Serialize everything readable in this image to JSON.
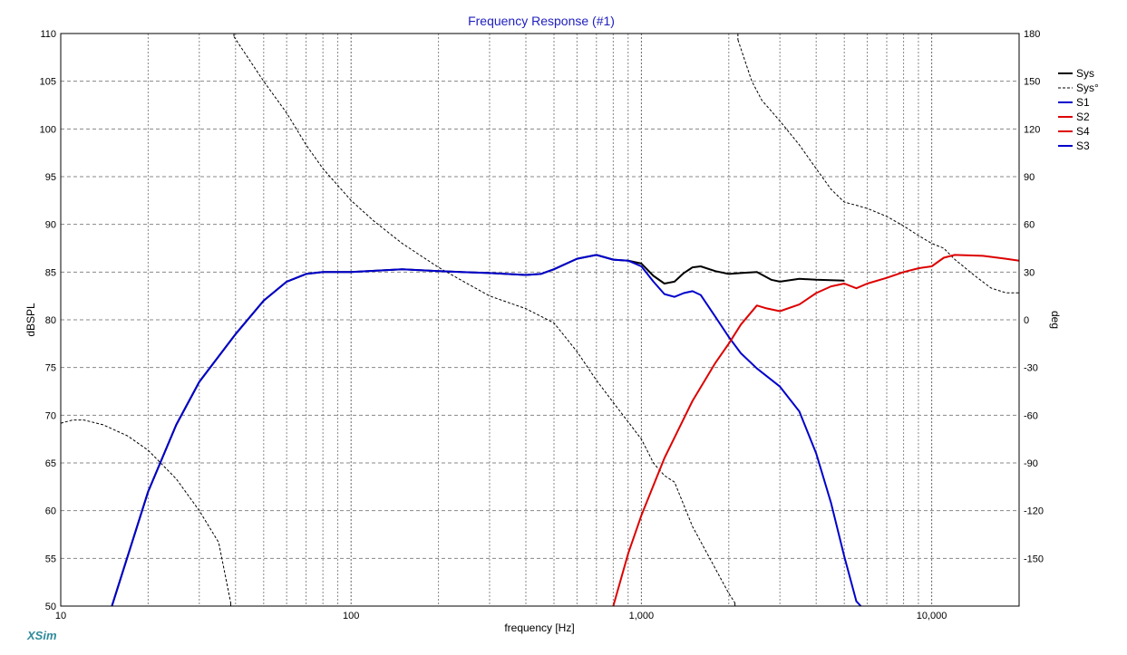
{
  "app": {
    "watermark": "XSim"
  },
  "chart_data": {
    "type": "line",
    "title": "Frequency Response (#1)",
    "xlabel": "frequency [Hz]",
    "ylabel": "dBSPL",
    "y2label": "deg",
    "xscale": "log",
    "xlim": [
      10,
      20000
    ],
    "ylim": [
      50,
      110
    ],
    "y2lim": [
      -180,
      180
    ],
    "grid": true,
    "legend_position": "top-right",
    "x_tick_labels": [
      {
        "value": 10,
        "label": "10"
      },
      {
        "value": 100,
        "label": "100"
      },
      {
        "value": 1000,
        "label": "1,000"
      },
      {
        "value": 10000,
        "label": "10,000"
      }
    ],
    "y_ticks": [
      50,
      55,
      60,
      65,
      70,
      75,
      80,
      85,
      90,
      95,
      100,
      105,
      110
    ],
    "y2_ticks": [
      {
        "value": 180,
        "label": "180"
      },
      {
        "value": 150,
        "label": "150"
      },
      {
        "value": 120,
        "label": "120"
      },
      {
        "value": 90,
        "label": "90"
      },
      {
        "value": 60,
        "label": "60"
      },
      {
        "value": 30,
        "label": "30"
      },
      {
        "value": 0,
        "label": "0"
      },
      {
        "value": -30,
        "label": "-30"
      },
      {
        "value": -60,
        "label": "-60"
      },
      {
        "value": -90,
        "label": "-90"
      },
      {
        "value": -120,
        "label": "-120"
      },
      {
        "value": -150,
        "label": "-150"
      }
    ],
    "series": [
      {
        "name": "Sys",
        "color": "#000000",
        "style": "solid",
        "axis": "left",
        "x": [
          15,
          20,
          25,
          30,
          40,
          50,
          60,
          70,
          80,
          100,
          150,
          200,
          300,
          400,
          450,
          500,
          600,
          700,
          800,
          900,
          1000,
          1100,
          1200,
          1300,
          1400,
          1500,
          1600,
          1800,
          2000,
          2200,
          2500,
          2800,
          3000,
          3500,
          4000,
          5000
        ],
        "y": [
          50.0,
          62.0,
          69.0,
          73.5,
          78.5,
          82.0,
          84.0,
          84.8,
          85.0,
          85.0,
          85.3,
          85.1,
          84.9,
          84.7,
          84.8,
          85.3,
          86.4,
          86.8,
          86.3,
          86.2,
          85.9,
          84.6,
          83.8,
          84.0,
          84.9,
          85.5,
          85.6,
          85.1,
          84.8,
          84.9,
          85.0,
          84.2,
          84.0,
          84.3,
          84.2,
          84.1
        ]
      },
      {
        "name": "Sys°",
        "color": "#000000",
        "style": "dashed",
        "axis": "right",
        "segments": [
          {
            "x": [
              10,
              11,
              12,
              14,
              17,
              20,
              25,
              30,
              35,
              38.5
            ],
            "y": [
              -65,
              -63,
              -63,
              -66,
              -73,
              -82,
              -100,
              -120,
              -140,
              -178
            ]
          },
          {
            "x": [
              39.5,
              50,
              60,
              70,
              80,
              100,
              120,
              150,
              200,
              250,
              300,
              400,
              500,
              600,
              700,
              800,
              1000,
              1100,
              1200,
              1300,
              1500,
              2000,
              2100
            ],
            "y": [
              178,
              150,
              130,
              110,
              95,
              75,
              62,
              48,
              33,
              23,
              15,
              7,
              -2,
              -20,
              -38,
              -52,
              -75,
              -90,
              -98,
              -102,
              -130,
              -172,
              -178
            ]
          },
          {
            "x": [
              2150,
              2400,
              2600,
              3000,
              3500,
              4000,
              4500,
              5000,
              5500,
              6000,
              7000,
              8000,
              9000,
              10000,
              11000,
              12000,
              14000,
              16000,
              18000,
              20000
            ],
            "y": [
              176,
              150,
              138,
              125,
              110,
              95,
              82,
              74,
              72,
              70,
              65,
              59,
              53,
              48,
              45,
              38,
              28,
              20,
              17,
              17
            ]
          }
        ]
      },
      {
        "name": "S1",
        "color": "#0000cc",
        "style": "solid",
        "axis": "left",
        "x": [
          15,
          20,
          25,
          30,
          40,
          50,
          60,
          70,
          80,
          100,
          150,
          200,
          300,
          400,
          450,
          500,
          600,
          700,
          800,
          900,
          1000,
          1100,
          1200,
          1300,
          1400,
          1500,
          1600,
          1800,
          2000,
          2200,
          2500,
          3000,
          3500,
          4000,
          4500,
          5000,
          5500,
          5700
        ],
        "y": [
          50.0,
          62.0,
          69.0,
          73.5,
          78.5,
          82.0,
          84.0,
          84.8,
          85.0,
          85.0,
          85.3,
          85.1,
          84.9,
          84.7,
          84.8,
          85.3,
          86.4,
          86.8,
          86.3,
          86.2,
          85.6,
          84.0,
          82.7,
          82.4,
          82.8,
          83.0,
          82.6,
          80.3,
          78.2,
          76.5,
          74.9,
          73.0,
          70.4,
          66.0,
          60.8,
          55.2,
          50.5,
          50.0
        ]
      },
      {
        "name": "S2",
        "color": "#dd0000",
        "style": "solid",
        "axis": "left",
        "x": [
          800,
          900,
          1000,
          1200,
          1500,
          1800,
          2000,
          2200,
          2500,
          2700,
          3000,
          3500,
          4000,
          4500,
          5000,
          5500,
          6000,
          7000,
          8000,
          9000,
          10000,
          11000,
          12000,
          15000,
          18000,
          20000
        ],
        "y": [
          50.0,
          55.5,
          59.5,
          65.5,
          71.5,
          75.5,
          77.5,
          79.5,
          81.5,
          81.2,
          80.9,
          81.6,
          82.8,
          83.5,
          83.8,
          83.3,
          83.8,
          84.4,
          85.0,
          85.4,
          85.6,
          86.5,
          86.8,
          86.7,
          86.4,
          86.2
        ]
      },
      {
        "name": "S4",
        "color": "#dd0000",
        "style": "solid",
        "axis": "left",
        "x": [],
        "y": []
      },
      {
        "name": "S3",
        "color": "#0000cc",
        "style": "solid",
        "axis": "left",
        "x": [],
        "y": []
      }
    ]
  }
}
